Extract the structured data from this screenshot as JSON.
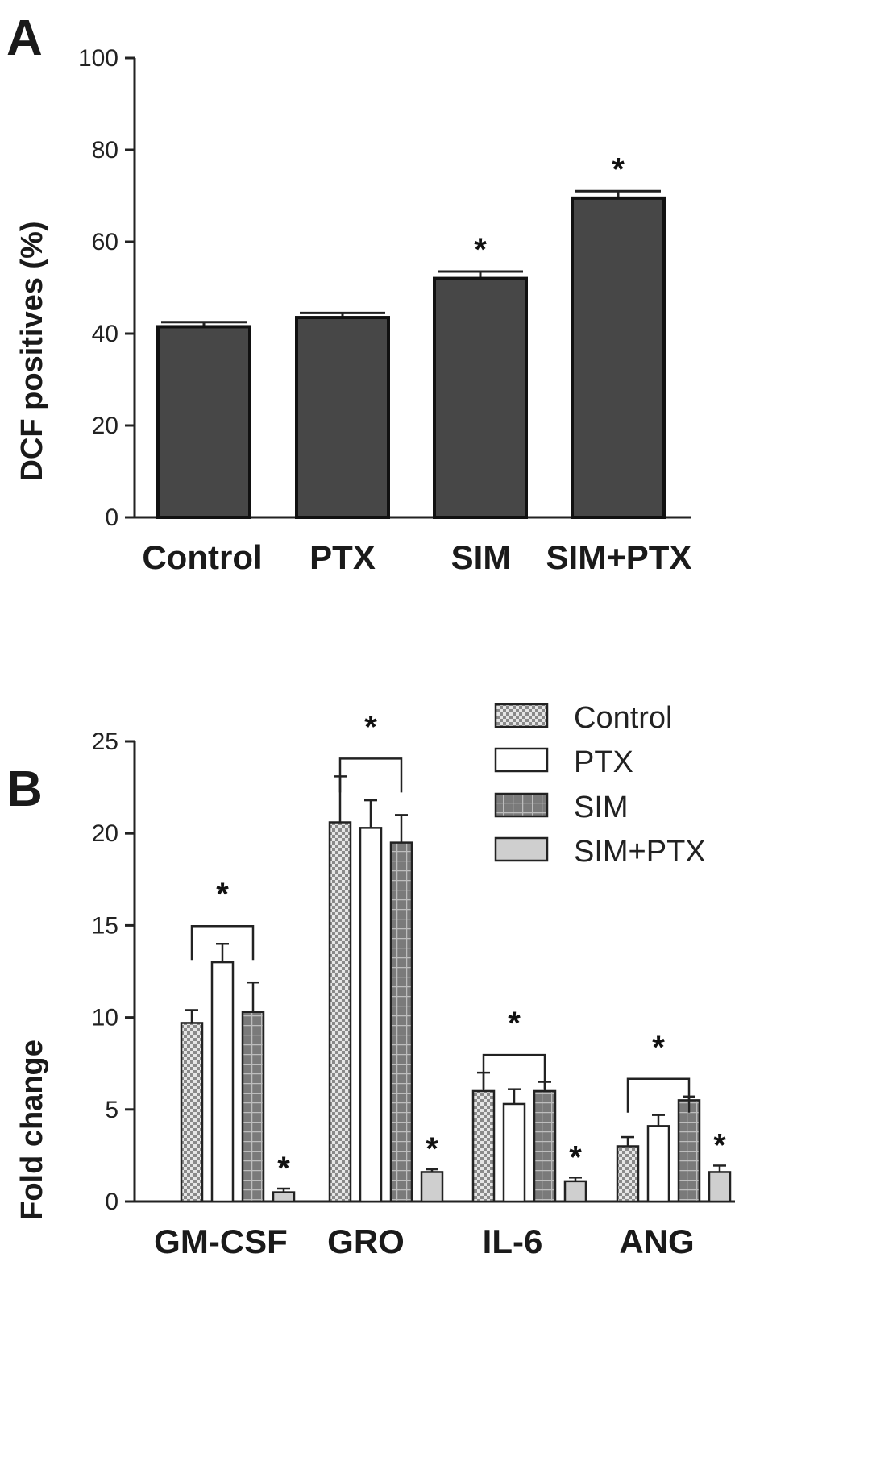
{
  "chart_data": [
    {
      "panel": "A",
      "type": "bar",
      "ylabel": "DCF positives (%)",
      "ylim": [
        0,
        100
      ],
      "yticks": [
        0,
        20,
        40,
        60,
        80,
        100
      ],
      "categories": [
        "Control",
        "PTX",
        "SIM",
        "SIM+PTX"
      ],
      "values": [
        41.5,
        43.5,
        52,
        69.5
      ],
      "errors": [
        1.0,
        1.0,
        1.5,
        1.5
      ],
      "significance": [
        "",
        "",
        "*",
        "*"
      ],
      "bar_color": "#474747"
    },
    {
      "panel": "B",
      "type": "bar",
      "ylabel": "Fold change",
      "ylim": [
        0,
        25
      ],
      "yticks": [
        0,
        5,
        10,
        15,
        20,
        25
      ],
      "categories": [
        "GM-CSF",
        "GRO",
        "IL-6",
        "ANG"
      ],
      "series": [
        {
          "name": "Control",
          "values": [
            9.7,
            20.6,
            6.0,
            3.0
          ],
          "errors": [
            0.7,
            2.5,
            1.0,
            0.5
          ],
          "fill": "checker"
        },
        {
          "name": "PTX",
          "values": [
            13.0,
            20.3,
            5.3,
            4.1
          ],
          "errors": [
            1.0,
            1.5,
            0.8,
            0.6
          ],
          "fill": "white"
        },
        {
          "name": "SIM",
          "values": [
            10.3,
            19.5,
            6.0,
            5.5
          ],
          "errors": [
            1.6,
            1.5,
            0.5,
            0.2
          ],
          "fill": "grid"
        },
        {
          "name": "SIM+PTX",
          "values": [
            0.5,
            1.6,
            1.1,
            1.6
          ],
          "errors": [
            0.2,
            0.15,
            0.2,
            0.35
          ],
          "fill": "lightgray"
        }
      ],
      "group_significance": [
        "*",
        "*",
        "*",
        "*"
      ],
      "simptx_significance": [
        "*",
        "*",
        "*",
        "*"
      ],
      "legend_position": "top-right"
    }
  ]
}
